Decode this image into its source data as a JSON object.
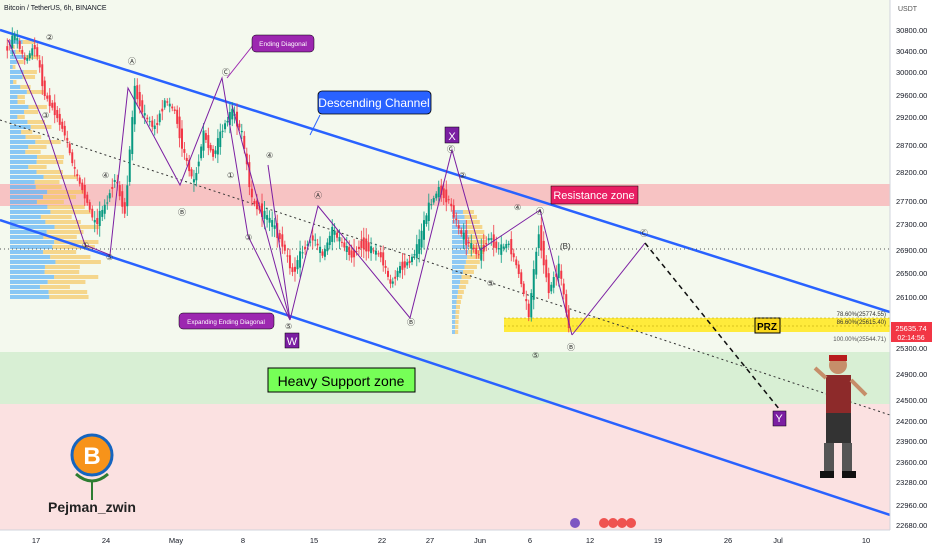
{
  "header": {
    "title": "Bitcoin / TetherUS, 6h, BINANCE",
    "currency": "USDT"
  },
  "chart_data": {
    "type": "candlestick",
    "symbol": "Bitcoin / TetherUS",
    "interval": "6h",
    "exchange": "BINANCE",
    "currency": "USDT",
    "ylim": [
      22680,
      30880
    ],
    "y_ticks": [
      30800,
      30400,
      30000,
      29600,
      29200,
      28700,
      28200,
      27700,
      27300,
      26900,
      26500,
      26100,
      25300,
      24900,
      24500,
      24200,
      23900,
      23600,
      23280,
      22960,
      22680
    ],
    "x_ticks": [
      {
        "label": "17",
        "day": 17
      },
      {
        "label": "24",
        "day": 24
      },
      {
        "label": "May",
        "day": 31
      },
      {
        "label": "8",
        "day": 38
      },
      {
        "label": "15",
        "day": 45
      },
      {
        "label": "22",
        "day": 52
      },
      {
        "label": "27",
        "day": 57
      },
      {
        "label": "Jun",
        "day": 62
      },
      {
        "label": "6",
        "day": 67
      },
      {
        "label": "12",
        "day": 73
      },
      {
        "label": "19",
        "day": 80
      },
      {
        "label": "26",
        "day": 87
      },
      {
        "label": "Jul",
        "day": 92
      },
      {
        "label": "10",
        "day": 101
      }
    ],
    "price_path": [
      {
        "day": 14,
        "price": 30400
      },
      {
        "day": 15,
        "price": 30700
      },
      {
        "day": 16,
        "price": 30200
      },
      {
        "day": 17,
        "price": 30500
      },
      {
        "day": 18,
        "price": 29600
      },
      {
        "day": 19,
        "price": 29300
      },
      {
        "day": 20,
        "price": 28900
      },
      {
        "day": 21,
        "price": 28200
      },
      {
        "day": 22,
        "price": 27800
      },
      {
        "day": 23,
        "price": 27300
      },
      {
        "day": 24,
        "price": 27600
      },
      {
        "day": 25,
        "price": 28100
      },
      {
        "day": 26,
        "price": 27500
      },
      {
        "day": 27,
        "price": 29700
      },
      {
        "day": 28,
        "price": 29200
      },
      {
        "day": 29,
        "price": 29000
      },
      {
        "day": 30,
        "price": 29500
      },
      {
        "day": 31,
        "price": 29300
      },
      {
        "day": 32,
        "price": 28500
      },
      {
        "day": 33,
        "price": 28000
      },
      {
        "day": 34,
        "price": 28900
      },
      {
        "day": 35,
        "price": 28500
      },
      {
        "day": 36,
        "price": 29000
      },
      {
        "day": 37,
        "price": 29300
      },
      {
        "day": 38,
        "price": 28900
      },
      {
        "day": 39,
        "price": 27700
      },
      {
        "day": 40,
        "price": 27500
      },
      {
        "day": 41,
        "price": 27300
      },
      {
        "day": 42,
        "price": 27000
      },
      {
        "day": 43,
        "price": 26500
      },
      {
        "day": 44,
        "price": 26900
      },
      {
        "day": 45,
        "price": 27100
      },
      {
        "day": 46,
        "price": 26800
      },
      {
        "day": 47,
        "price": 27200
      },
      {
        "day": 48,
        "price": 27000
      },
      {
        "day": 49,
        "price": 26800
      },
      {
        "day": 50,
        "price": 27000
      },
      {
        "day": 51,
        "price": 26900
      },
      {
        "day": 52,
        "price": 26800
      },
      {
        "day": 53,
        "price": 26300
      },
      {
        "day": 54,
        "price": 26600
      },
      {
        "day": 55,
        "price": 26700
      },
      {
        "day": 56,
        "price": 27000
      },
      {
        "day": 57,
        "price": 27600
      },
      {
        "day": 58,
        "price": 27900
      },
      {
        "day": 59,
        "price": 27700
      },
      {
        "day": 60,
        "price": 27200
      },
      {
        "day": 61,
        "price": 27000
      },
      {
        "day": 62,
        "price": 26800
      },
      {
        "day": 63,
        "price": 27100
      },
      {
        "day": 64,
        "price": 26900
      },
      {
        "day": 65,
        "price": 27000
      },
      {
        "day": 66,
        "price": 26500
      },
      {
        "day": 67,
        "price": 25800
      },
      {
        "day": 68,
        "price": 27200
      },
      {
        "day": 69,
        "price": 26200
      },
      {
        "day": 70,
        "price": 26600
      },
      {
        "day": 71,
        "price": 25635
      }
    ],
    "current_price": {
      "value": 25635.74,
      "label": "25635.74",
      "countdown": "02:14:56"
    },
    "zones": [
      {
        "name": "Resistance zone",
        "low": 27750,
        "high": 28000,
        "color": "#f4b6b6"
      },
      {
        "name": "Heavy Support zone",
        "low": 24500,
        "high": 25280,
        "color": "#c8e6c9"
      },
      {
        "name": "PRZ",
        "low": 25544.71,
        "high": 25774.55,
        "color": "#ffeb3b"
      }
    ],
    "fib_levels": [
      {
        "label": "78.60%(25774.55)",
        "price": 25774.55
      },
      {
        "label": "86.60%(25615.40)",
        "price": 25615.4
      },
      {
        "label": "100.00%(25544.71)",
        "price": 25544.71
      }
    ],
    "annotations": [
      {
        "text": "Descending Channel",
        "color": "#2962ff"
      },
      {
        "text": "Ending Diagonal",
        "color": "#9c27b0"
      },
      {
        "text": "Expanding Ending Diagonal",
        "color": "#9c27b0"
      },
      {
        "text": "Resistance zone",
        "color": "#e91e63"
      },
      {
        "text": "Heavy Support zone",
        "color": "#4caf50"
      },
      {
        "text": "PRZ",
        "color": "#f9d71c"
      }
    ],
    "wave_labels": [
      "W",
      "X",
      "Y"
    ],
    "wave_marks": [
      "①",
      "②",
      "③",
      "④",
      "⑤",
      "Ⓐ",
      "Ⓑ",
      "Ⓒ",
      "Ⓓ",
      "Ⓔ",
      "(B)"
    ],
    "grid": false
  },
  "branding": {
    "author": "Pejman_zwin"
  },
  "colors": {
    "channel": "#2962ff",
    "wave": "#7b1fa2",
    "price_tag": "#f23645",
    "bull": "#089981",
    "bear": "#f23645"
  }
}
